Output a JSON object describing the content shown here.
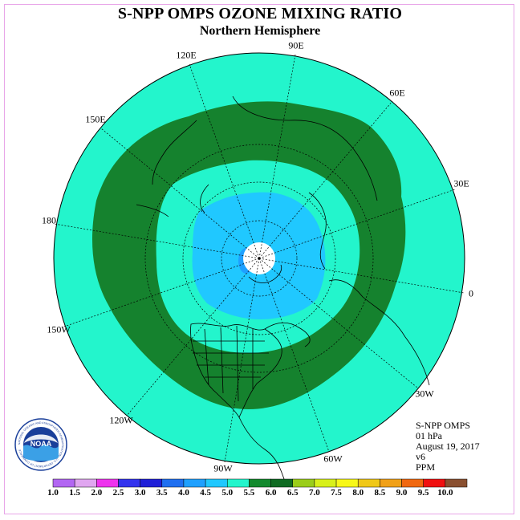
{
  "title": "S-NPP OMPS OZONE MIXING RATIO",
  "subtitle": "Northern Hemisphere",
  "longitude_labels": {
    "lon_90e": "90E",
    "lon_60e": "60E",
    "lon_30e": "30E",
    "lon_0": "0",
    "lon_30w": "30W",
    "lon_60w": "60W",
    "lon_90w": "90W",
    "lon_120w": "120W",
    "lon_150w": "150W",
    "lon_180": "180",
    "lon_150e": "150E",
    "lon_120e": "120E"
  },
  "info": {
    "instrument": "S-NPP OMPS",
    "level": "01 hPa",
    "date": "August 19, 2017",
    "version": "v6",
    "units": "PPM"
  },
  "logo_text": "NOAA",
  "logo_ring_text": "NATIONAL OCEANIC AND ATMOSPHERIC ADMINISTRATION · U.S. DEPARTMENT OF COMMERCE",
  "colorbar": {
    "ticks": [
      "1.0",
      "1.5",
      "2.0",
      "2.5",
      "3.0",
      "3.5",
      "4.0",
      "4.5",
      "5.0",
      "5.5",
      "6.0",
      "6.5",
      "7.0",
      "7.5",
      "8.0",
      "8.5",
      "9.0",
      "9.5",
      "10.0"
    ],
    "colors": [
      "#b266f2",
      "#e0a6f0",
      "#ee33ee",
      "#3333ee",
      "#1f1fd8",
      "#1f6ff0",
      "#1fa0ff",
      "#20c8ff",
      "#23f5cc",
      "#138a2e",
      "#0f6b22",
      "#9acd1a",
      "#d8f01a",
      "#f8f818",
      "#f0c818",
      "#f0a018",
      "#f06810",
      "#f01010",
      "#8a5030"
    ]
  },
  "map_colors": {
    "outer_ocean": "#23f5cc",
    "dark_ring": "#15822e",
    "inner_cyan": "#23f5cc",
    "blue_zone": "#20c8ff",
    "inner_blue": "#1fa0ff",
    "pole_blank": "#ffffff"
  }
}
